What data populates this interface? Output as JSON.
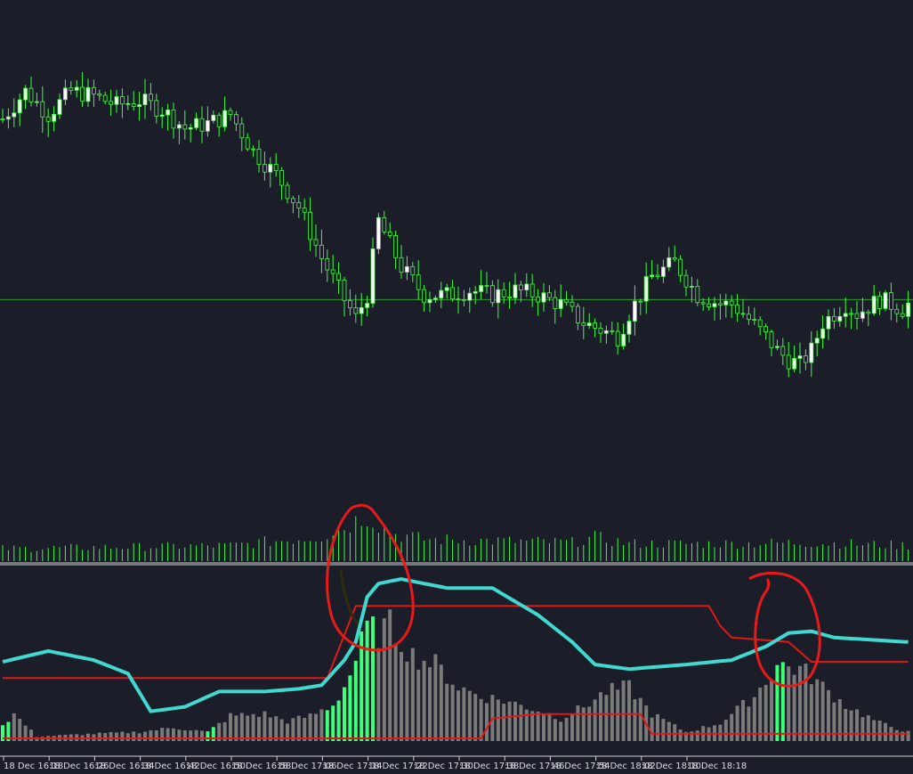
{
  "chart_data": [
    {
      "type": "candlestick",
      "title": "",
      "xlabel": "",
      "ylabel": "",
      "grid": false,
      "colors": {
        "background": "#1b1e28",
        "bull_candle": "#ffffff",
        "bear_candle": "#1b1e28",
        "wick": "#3cff3c",
        "horizontal_line": "#2a9c2a",
        "volume": "#3cff3c"
      },
      "bars_per_label": 8,
      "x_tick_labels": [
        "18 Dec 16:18",
        "18 Dec 16:26",
        "18 Dec 16:34",
        "18 Dec 16:42",
        "18 Dec 16:50",
        "18 Dec 16:58",
        "18 Dec 17:06",
        "18 Dec 17:14",
        "18 Dec 17:22",
        "18 Dec 17:30",
        "18 Dec 17:38",
        "18 Dec 17:46",
        "18 Dec 17:54",
        "18 Dec 18:02",
        "18 Dec 18:10",
        "18 Dec 18:18"
      ],
      "close_profile": [
        [
          0,
          82
        ],
        [
          4,
          88
        ],
        [
          8,
          83
        ],
        [
          12,
          88
        ],
        [
          16,
          87
        ],
        [
          20,
          85
        ],
        [
          24,
          86
        ],
        [
          28,
          84
        ],
        [
          32,
          80
        ],
        [
          36,
          81
        ],
        [
          40,
          83
        ],
        [
          44,
          75
        ],
        [
          48,
          70
        ],
        [
          52,
          63
        ],
        [
          56,
          52
        ],
        [
          60,
          43
        ],
        [
          62,
          39
        ],
        [
          64,
          44
        ],
        [
          66,
          60
        ],
        [
          70,
          50
        ],
        [
          74,
          44
        ],
        [
          78,
          44
        ],
        [
          82,
          45
        ],
        [
          86,
          44
        ],
        [
          90,
          45
        ],
        [
          94,
          44
        ],
        [
          98,
          42
        ],
        [
          102,
          38
        ],
        [
          106,
          36
        ],
        [
          108,
          35
        ],
        [
          110,
          40
        ],
        [
          114,
          48
        ],
        [
          118,
          51
        ],
        [
          122,
          44
        ],
        [
          126,
          42
        ],
        [
          128,
          42
        ],
        [
          130,
          40
        ],
        [
          134,
          35
        ],
        [
          136,
          32
        ],
        [
          138,
          30
        ],
        [
          140,
          29
        ],
        [
          142,
          32
        ],
        [
          144,
          38
        ],
        [
          148,
          42
        ],
        [
          150,
          40
        ],
        [
          154,
          43
        ],
        [
          158,
          41
        ],
        [
          159,
          42
        ]
      ],
      "reference_line": 43,
      "volume_profile": [
        [
          0,
          20
        ],
        [
          40,
          25
        ],
        [
          56,
          40
        ],
        [
          60,
          55
        ],
        [
          64,
          75
        ],
        [
          68,
          45
        ],
        [
          74,
          35
        ],
        [
          100,
          30
        ],
        [
          104,
          38
        ],
        [
          110,
          28
        ],
        [
          130,
          28
        ],
        [
          140,
          30
        ],
        [
          159,
          25
        ]
      ]
    },
    {
      "type": "bar-line",
      "title": "",
      "xlabel": "",
      "ylabel": "",
      "grid": false,
      "colors": {
        "histogram": "#7a7a7a",
        "histogram_highlight": "#3cff7a",
        "cyan_line": "#40d8d0",
        "red_line": "#e01818"
      },
      "histogram_profile": [
        [
          0,
          18
        ],
        [
          2,
          30
        ],
        [
          6,
          5
        ],
        [
          16,
          8
        ],
        [
          24,
          10
        ],
        [
          30,
          15
        ],
        [
          36,
          10
        ],
        [
          40,
          28
        ],
        [
          46,
          30
        ],
        [
          50,
          22
        ],
        [
          54,
          28
        ],
        [
          58,
          40
        ],
        [
          60,
          60
        ],
        [
          62,
          90
        ],
        [
          64,
          125
        ],
        [
          66,
          120
        ],
        [
          68,
          128
        ],
        [
          72,
          95
        ],
        [
          76,
          85
        ],
        [
          80,
          60
        ],
        [
          84,
          50
        ],
        [
          88,
          45
        ],
        [
          92,
          38
        ],
        [
          96,
          30
        ],
        [
          98,
          25
        ],
        [
          102,
          38
        ],
        [
          106,
          55
        ],
        [
          110,
          60
        ],
        [
          114,
          30
        ],
        [
          120,
          10
        ],
        [
          126,
          20
        ],
        [
          132,
          50
        ],
        [
          136,
          85
        ],
        [
          140,
          80
        ],
        [
          142,
          72
        ],
        [
          144,
          60
        ],
        [
          148,
          40
        ],
        [
          154,
          20
        ],
        [
          159,
          10
        ]
      ],
      "highlighted_bars": [
        0,
        1,
        36,
        37,
        57,
        58,
        59,
        60,
        61,
        62,
        63,
        64,
        65,
        136,
        137
      ],
      "cyan_line_profile": [
        [
          0,
          88
        ],
        [
          8,
          100
        ],
        [
          16,
          90
        ],
        [
          22,
          75
        ],
        [
          26,
          33
        ],
        [
          32,
          38
        ],
        [
          38,
          55
        ],
        [
          46,
          55
        ],
        [
          52,
          58
        ],
        [
          56,
          62
        ],
        [
          60,
          90
        ],
        [
          62,
          110
        ],
        [
          64,
          160
        ],
        [
          66,
          175
        ],
        [
          70,
          180
        ],
        [
          74,
          175
        ],
        [
          78,
          170
        ],
        [
          86,
          170
        ],
        [
          90,
          155
        ],
        [
          94,
          140
        ],
        [
          100,
          110
        ],
        [
          104,
          85
        ],
        [
          110,
          80
        ],
        [
          120,
          85
        ],
        [
          128,
          90
        ],
        [
          134,
          105
        ],
        [
          138,
          120
        ],
        [
          142,
          122
        ],
        [
          146,
          115
        ],
        [
          159,
          110
        ]
      ],
      "red_upper_profile": [
        [
          0,
          70
        ],
        [
          56,
          70
        ],
        [
          57,
          70
        ],
        [
          62,
          150
        ],
        [
          124,
          150
        ],
        [
          126,
          128
        ],
        [
          128,
          115
        ],
        [
          138,
          110
        ],
        [
          142,
          88
        ],
        [
          159,
          88
        ]
      ],
      "red_lower_profile": [
        [
          0,
          3
        ],
        [
          84,
          3
        ],
        [
          86,
          25
        ],
        [
          94,
          30
        ],
        [
          112,
          30
        ],
        [
          114,
          8
        ],
        [
          159,
          8
        ]
      ]
    }
  ]
}
